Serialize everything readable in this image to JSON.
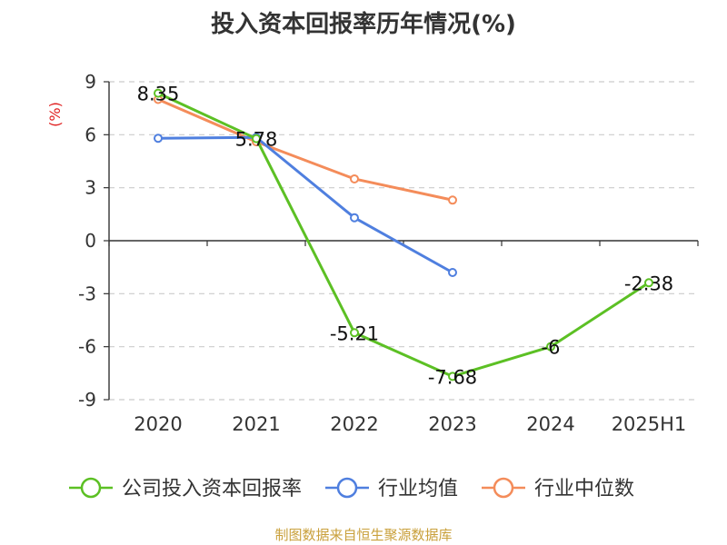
{
  "chart_data": {
    "type": "line",
    "title": "投入资本回报率历年情况(%)",
    "ylabel": "(%)",
    "xlabel": "",
    "categories": [
      "2020",
      "2021",
      "2022",
      "2023",
      "2024",
      "2025H1"
    ],
    "ylim": [
      -9,
      9
    ],
    "yticks": [
      9,
      6,
      3,
      0,
      -3,
      -6,
      -9
    ],
    "grid": true,
    "legend_position": "bottom",
    "series": [
      {
        "name": "公司投入资本回报率",
        "color": "#5cc024",
        "values": [
          8.35,
          5.78,
          -5.21,
          -7.68,
          -6,
          -2.38
        ],
        "data_labels": [
          "8.35",
          "5.78",
          "-5.21",
          "-7.68",
          "-6",
          "-2.38"
        ]
      },
      {
        "name": "行业均值",
        "color": "#4f7fdf",
        "values": [
          5.8,
          5.85,
          1.3,
          -1.8,
          null,
          null
        ]
      },
      {
        "name": "行业中位数",
        "color": "#f48c5a",
        "values": [
          8.0,
          5.6,
          3.5,
          2.3,
          null,
          null
        ]
      }
    ],
    "source": "制图数据来自恒生聚源数据库"
  }
}
